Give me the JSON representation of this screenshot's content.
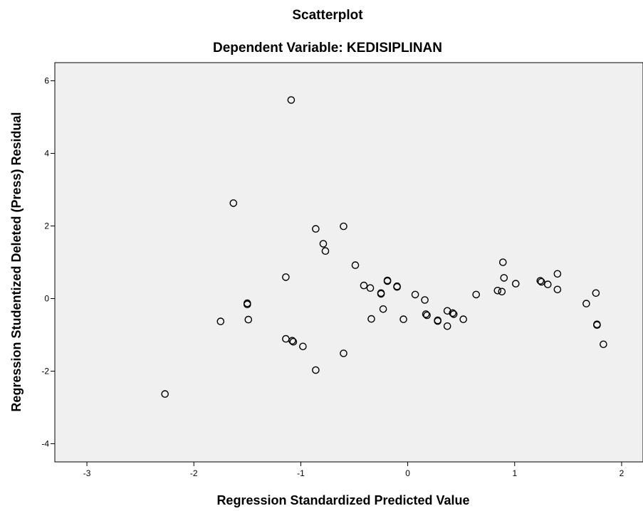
{
  "chart_data": {
    "type": "scatter",
    "title": "Scatterplot",
    "subtitle": "Dependent Variable: KEDISIPLINAN",
    "xlabel": "Regression Standardized Predicted Value",
    "ylabel": "Regression Studentized Deleted (Press) Residual",
    "xlim": [
      -3.3,
      2.2
    ],
    "ylim": [
      -4.5,
      6.5
    ],
    "xticks": [
      -3,
      -2,
      -1,
      0,
      1,
      2
    ],
    "yticks": [
      -4,
      -2,
      0,
      2,
      4,
      6
    ],
    "grid": false,
    "colors": {
      "plot_background": "#f0f0f0",
      "marker_stroke": "#000000",
      "frame": "#000000"
    },
    "marker": "open-circle",
    "points": [
      {
        "x": -2.27,
        "y": -2.63
      },
      {
        "x": -1.75,
        "y": -0.63
      },
      {
        "x": -1.63,
        "y": 2.63
      },
      {
        "x": -1.5,
        "y": -0.13
      },
      {
        "x": -1.5,
        "y": -0.16
      },
      {
        "x": -1.49,
        "y": -0.58
      },
      {
        "x": -1.14,
        "y": 0.59
      },
      {
        "x": -1.14,
        "y": -1.11
      },
      {
        "x": -1.09,
        "y": 5.47
      },
      {
        "x": -1.08,
        "y": -1.16
      },
      {
        "x": -1.07,
        "y": -1.19
      },
      {
        "x": -0.98,
        "y": -1.32
      },
      {
        "x": -0.86,
        "y": 1.92
      },
      {
        "x": -0.86,
        "y": -1.97
      },
      {
        "x": -0.79,
        "y": 1.51
      },
      {
        "x": -0.77,
        "y": 1.31
      },
      {
        "x": -0.6,
        "y": 1.99
      },
      {
        "x": -0.6,
        "y": -1.51
      },
      {
        "x": -0.49,
        "y": 0.92
      },
      {
        "x": -0.41,
        "y": 0.36
      },
      {
        "x": -0.35,
        "y": 0.29
      },
      {
        "x": -0.34,
        "y": -0.56
      },
      {
        "x": -0.25,
        "y": 0.15
      },
      {
        "x": -0.25,
        "y": 0.13
      },
      {
        "x": -0.23,
        "y": -0.29
      },
      {
        "x": -0.19,
        "y": 0.48
      },
      {
        "x": -0.19,
        "y": 0.5
      },
      {
        "x": -0.1,
        "y": 0.34
      },
      {
        "x": -0.1,
        "y": 0.32
      },
      {
        "x": -0.04,
        "y": -0.57
      },
      {
        "x": 0.07,
        "y": 0.11
      },
      {
        "x": 0.16,
        "y": -0.04
      },
      {
        "x": 0.17,
        "y": -0.43
      },
      {
        "x": 0.18,
        "y": -0.46
      },
      {
        "x": 0.28,
        "y": -0.6
      },
      {
        "x": 0.28,
        "y": -0.62
      },
      {
        "x": 0.37,
        "y": -0.34
      },
      {
        "x": 0.37,
        "y": -0.76
      },
      {
        "x": 0.42,
        "y": -0.4
      },
      {
        "x": 0.43,
        "y": -0.43
      },
      {
        "x": 0.52,
        "y": -0.57
      },
      {
        "x": 0.64,
        "y": 0.11
      },
      {
        "x": 0.84,
        "y": 0.22
      },
      {
        "x": 0.88,
        "y": 0.19
      },
      {
        "x": 0.89,
        "y": 1.0
      },
      {
        "x": 0.9,
        "y": 0.57
      },
      {
        "x": 1.01,
        "y": 0.41
      },
      {
        "x": 1.24,
        "y": 0.49
      },
      {
        "x": 1.25,
        "y": 0.46
      },
      {
        "x": 1.31,
        "y": 0.39
      },
      {
        "x": 1.4,
        "y": 0.68
      },
      {
        "x": 1.4,
        "y": 0.25
      },
      {
        "x": 1.67,
        "y": -0.14
      },
      {
        "x": 1.76,
        "y": 0.15
      },
      {
        "x": 1.77,
        "y": -0.71
      },
      {
        "x": 1.77,
        "y": -0.73
      },
      {
        "x": 1.83,
        "y": -1.26
      }
    ]
  }
}
